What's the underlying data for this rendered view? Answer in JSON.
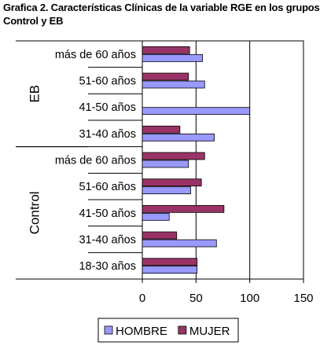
{
  "title": [
    "Grafica 2. Características Clínicas de la variable RGE en los grupos",
    "Control y EB"
  ],
  "chart_data": {
    "type": "bar",
    "orientation": "horizontal",
    "xlim": [
      0,
      150
    ],
    "x_ticks": [
      0,
      50,
      100,
      150
    ],
    "grid": "vertical",
    "legend_position": "bottom",
    "groups": [
      {
        "label": "EB",
        "categories": [
          "más de 60 años",
          "51-60 años",
          "41-50 años",
          "31-40 años"
        ]
      },
      {
        "label": "Control",
        "categories": [
          "más de 60 años",
          "51-60 años",
          "41-50 años",
          "31-40 años",
          "18-30 años"
        ]
      }
    ],
    "series": [
      {
        "name": "HOMBRE",
        "color": "#9999ff",
        "values": [
          [
            56,
            58,
            100,
            67
          ],
          [
            43,
            45,
            25,
            69,
            51
          ]
        ]
      },
      {
        "name": "MUJER",
        "color": "#993366",
        "values": [
          [
            44,
            43,
            0,
            35
          ],
          [
            58,
            55,
            76,
            32,
            51
          ]
        ]
      }
    ]
  }
}
